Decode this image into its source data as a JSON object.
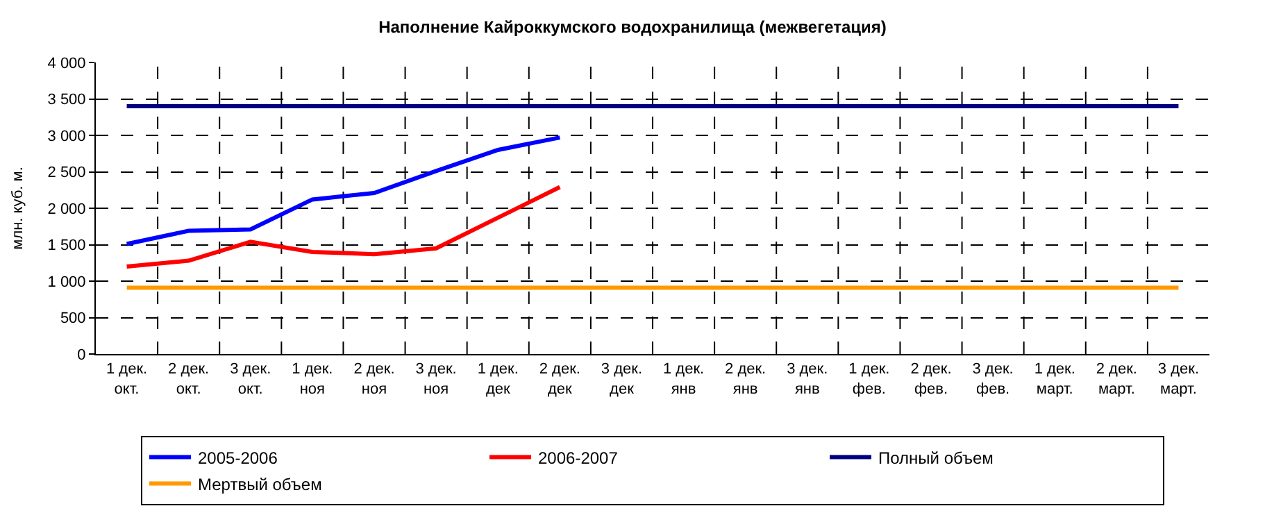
{
  "chart_data": {
    "type": "line",
    "title": "Наполнение Кайроккумского водохранилища (межвегетация)",
    "ylabel": "млн. куб. м.",
    "categories": [
      "1 дек.\nокт.",
      "2 дек.\nокт.",
      "3 дек.\nокт.",
      "1 дек.\nноя",
      "2 дек.\nноя",
      "3 дек.\nноя",
      "1 дек.\nдек",
      "2 дек.\nдек",
      "3 дек.\nдек",
      "1 дек.\nянв",
      "2 дек.\nянв",
      "3 дек.\nянв",
      "1 дек.\nфев.",
      "2 дек.\nфев.",
      "3 дек.\nфев.",
      "1 дек.\nмарт.",
      "2 дек.\nмарт.",
      "3 дек.\nмарт."
    ],
    "series": [
      {
        "name": "2005-2006",
        "color": "#0000ff",
        "values": [
          1510,
          1690,
          1710,
          2120,
          2210,
          2510,
          2800,
          2970,
          null,
          null,
          null,
          null,
          null,
          null,
          null,
          null,
          null,
          null
        ]
      },
      {
        "name": "2006-2007",
        "color": "#ff0000",
        "values": [
          1200,
          1280,
          1540,
          1400,
          1370,
          1450,
          1870,
          2290,
          null,
          null,
          null,
          null,
          null,
          null,
          null,
          null,
          null,
          null
        ]
      },
      {
        "name": "Полный объем",
        "color": "#000080",
        "values": [
          3400,
          3400,
          3400,
          3400,
          3400,
          3400,
          3400,
          3400,
          3400,
          3400,
          3400,
          3400,
          3400,
          3400,
          3400,
          3400,
          3400,
          3400
        ]
      },
      {
        "name": "Мертвый объем",
        "color": "#ff9900",
        "values": [
          910,
          910,
          910,
          910,
          910,
          910,
          910,
          910,
          910,
          910,
          910,
          910,
          910,
          910,
          910,
          910,
          910,
          910
        ]
      }
    ],
    "ylim": [
      0,
      4000
    ],
    "yticks": [
      {
        "value": 0,
        "label": "0"
      },
      {
        "value": 500,
        "label": "500"
      },
      {
        "value": 1000,
        "label": "1 000"
      },
      {
        "value": 1500,
        "label": "1 500"
      },
      {
        "value": 2000,
        "label": "2 000"
      },
      {
        "value": 2500,
        "label": "2 500"
      },
      {
        "value": 3000,
        "label": "3 000"
      },
      {
        "value": 3500,
        "label": "3 500"
      },
      {
        "value": 4000,
        "label": "4 000"
      }
    ],
    "grid": true,
    "legend": "bottom",
    "marker": "none",
    "line_style": "solid"
  }
}
